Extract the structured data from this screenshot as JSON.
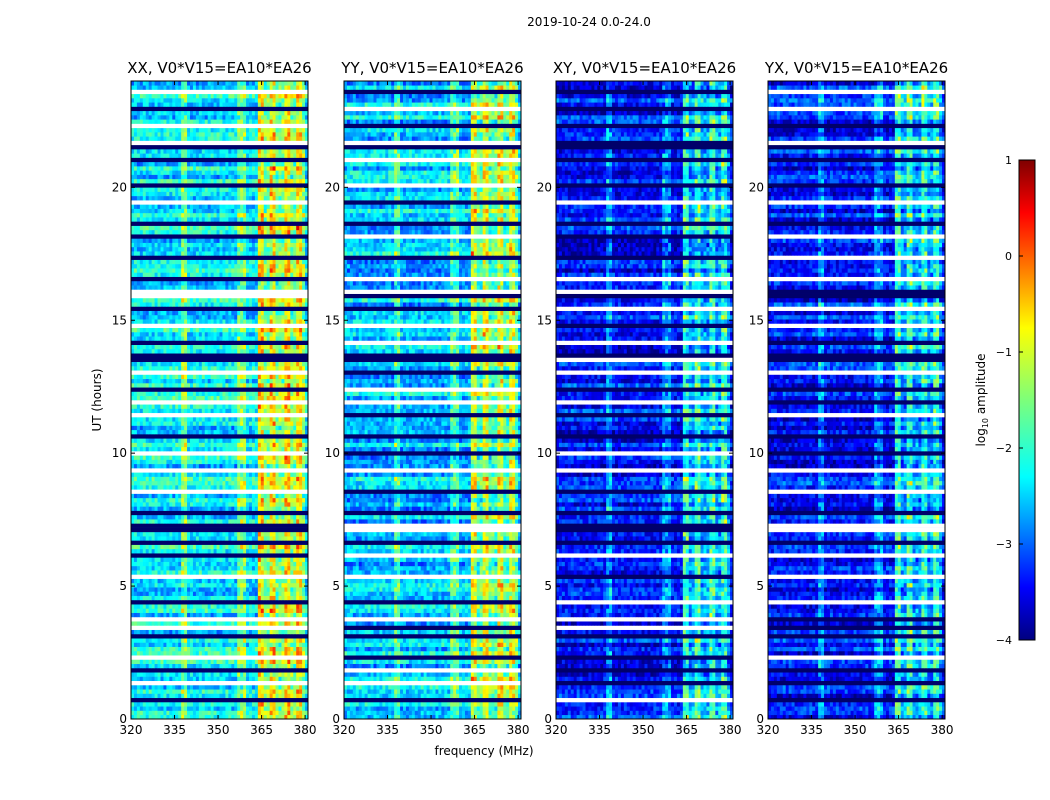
{
  "chart_data": {
    "type": "heatmap",
    "suptitle": "2019-10-24 0.0-24.0",
    "xlabel": "frequency (MHz)",
    "ylabel": "UT (hours)",
    "xlim": [
      320,
      381
    ],
    "ylim": [
      0,
      24
    ],
    "xticks": [
      320,
      335,
      350,
      365,
      380
    ],
    "yticks": [
      0,
      5,
      10,
      15,
      20
    ],
    "colorbar": {
      "label_prefix": "log",
      "label_subscript": "10",
      "label_suffix": " amplitude",
      "range": [
        -4,
        1
      ],
      "ticks": [
        -4,
        -3,
        -2,
        -1,
        0,
        1
      ],
      "tick_labels": [
        "−4",
        "−3",
        "−2",
        "−1",
        "0",
        "1"
      ],
      "colormap": "jet"
    },
    "panels": [
      {
        "title": "XX, V0*V15=EA10*EA26",
        "pol": "XX",
        "background_log10": -2.2
      },
      {
        "title": "YY, V0*V15=EA10*EA26",
        "pol": "YY",
        "background_log10": -2.4
      },
      {
        "title": "XY, V0*V15=EA10*EA26",
        "pol": "XY",
        "background_log10": -3.3
      },
      {
        "title": "YX, V0*V15=EA10*EA26",
        "pol": "YX",
        "background_log10": -3.3
      }
    ],
    "rfi_channels_mhz": [
      338,
      358,
      365,
      369,
      374,
      378
    ],
    "bright_band_mhz": [
      364,
      380
    ],
    "flagged_time_rows_hours": [
      0.7,
      1.3,
      1.9,
      2.3,
      3.1,
      3.5,
      3.8,
      4.4,
      5.4,
      6.1,
      6.7,
      7.2,
      7.8,
      8.6,
      9.3,
      10.0,
      10.7,
      11.4,
      11.9,
      12.4,
      13.0,
      13.6,
      14.2,
      14.8,
      15.4,
      16.0,
      16.6,
      17.4,
      18.1,
      18.7,
      19.4,
      20.1,
      21.1,
      21.6,
      22.3,
      23.0,
      23.6
    ]
  }
}
